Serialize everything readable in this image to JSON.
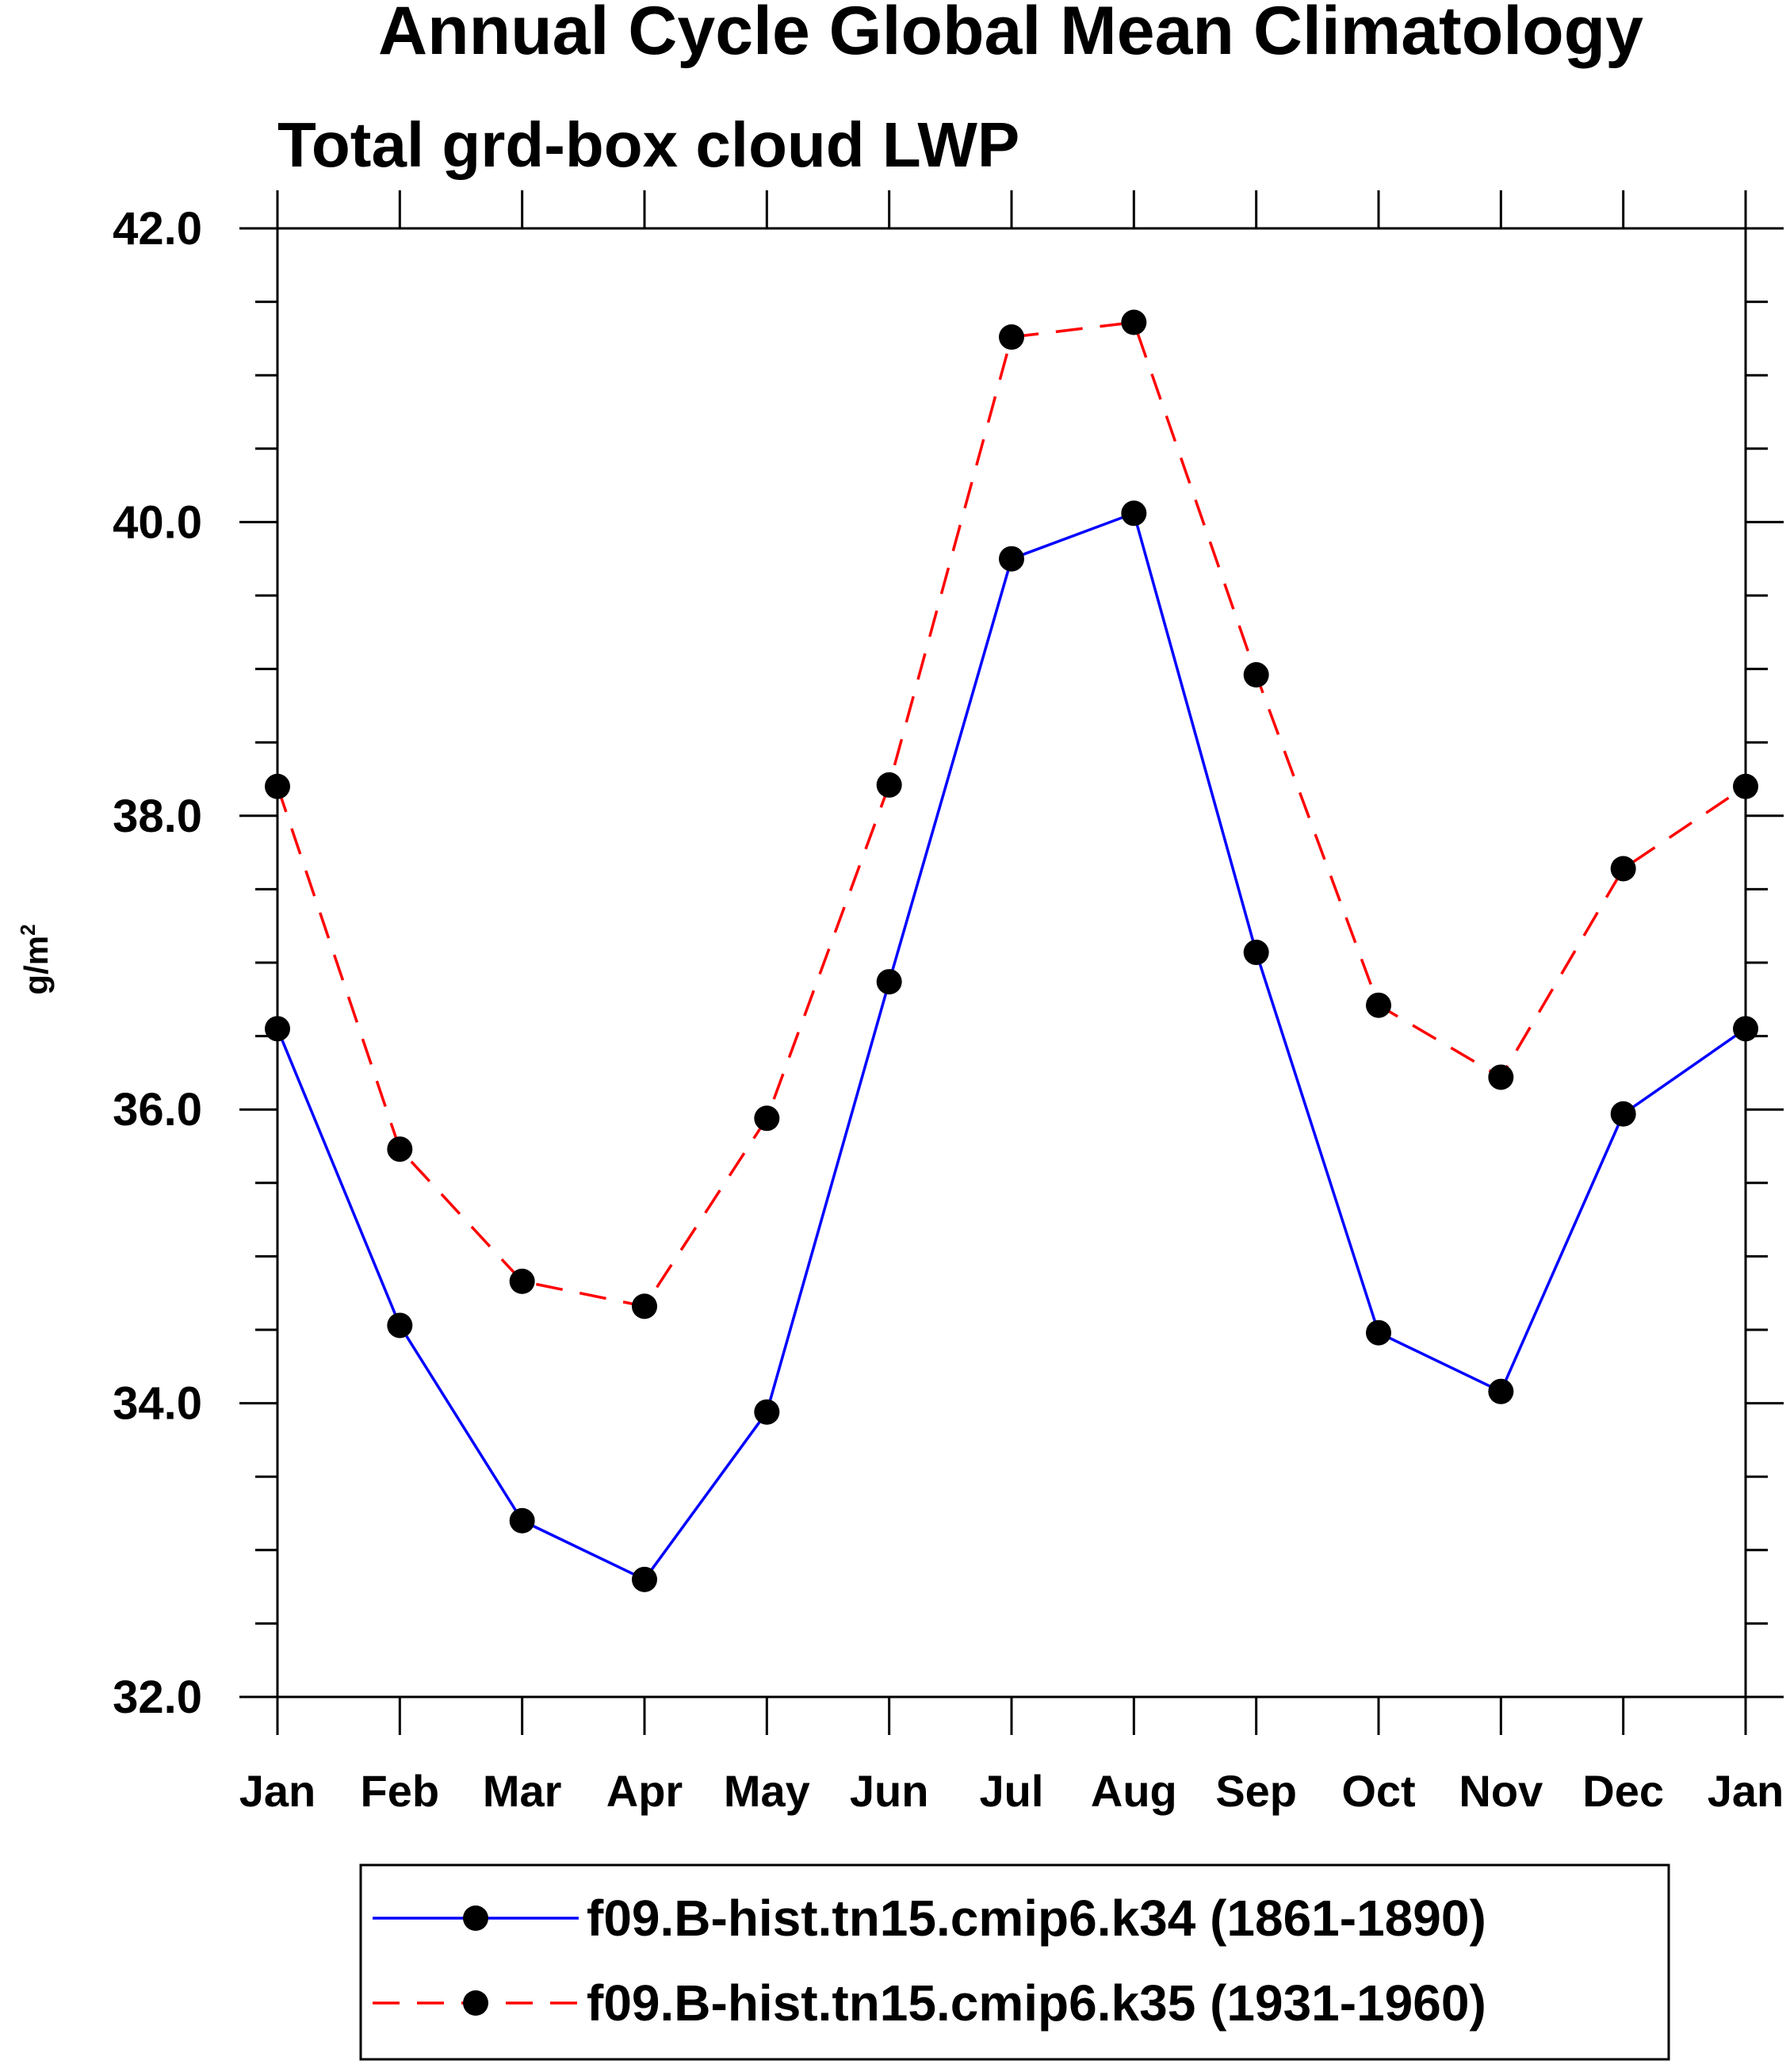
{
  "chart_data": {
    "type": "line",
    "title": "Annual Cycle Global Mean Climatology",
    "subtitle": "Total grd-box cloud LWP",
    "ylabel_base": "g/m",
    "ylabel_sup": "2",
    "xlabel": "",
    "categories": [
      "Jan",
      "Feb",
      "Mar",
      "Apr",
      "May",
      "Jun",
      "Jul",
      "Aug",
      "Sep",
      "Oct",
      "Nov",
      "Dec",
      "Jan"
    ],
    "ylim": [
      32.0,
      42.0
    ],
    "yticks_major": [
      32.0,
      34.0,
      36.0,
      38.0,
      40.0,
      42.0
    ],
    "yticks_major_labels": [
      "32.0",
      "34.0",
      "36.0",
      "38.0",
      "40.0",
      "42.0"
    ],
    "ytick_minor_step": 0.5,
    "grid": false,
    "legend_position": "bottom-center",
    "series": [
      {
        "name": "f09.B-hist.tn15.cmip6.k34 (1861-1890)",
        "color": "#0000ff",
        "line_style": "solid",
        "marker": "filled-circle",
        "marker_color": "#000000",
        "values": [
          36.55,
          34.53,
          33.2,
          32.8,
          33.94,
          36.87,
          39.75,
          40.06,
          37.07,
          34.48,
          34.08,
          35.97,
          36.55
        ]
      },
      {
        "name": "f09.B-hist.tn15.cmip6.k35 (1931-1960)",
        "color": "#ff0000",
        "line_style": "dashed",
        "marker": "filled-circle",
        "marker_color": "#000000",
        "values": [
          38.2,
          35.73,
          34.83,
          34.66,
          35.94,
          38.21,
          41.26,
          41.36,
          38.96,
          36.71,
          36.22,
          37.64,
          38.2
        ]
      }
    ]
  }
}
